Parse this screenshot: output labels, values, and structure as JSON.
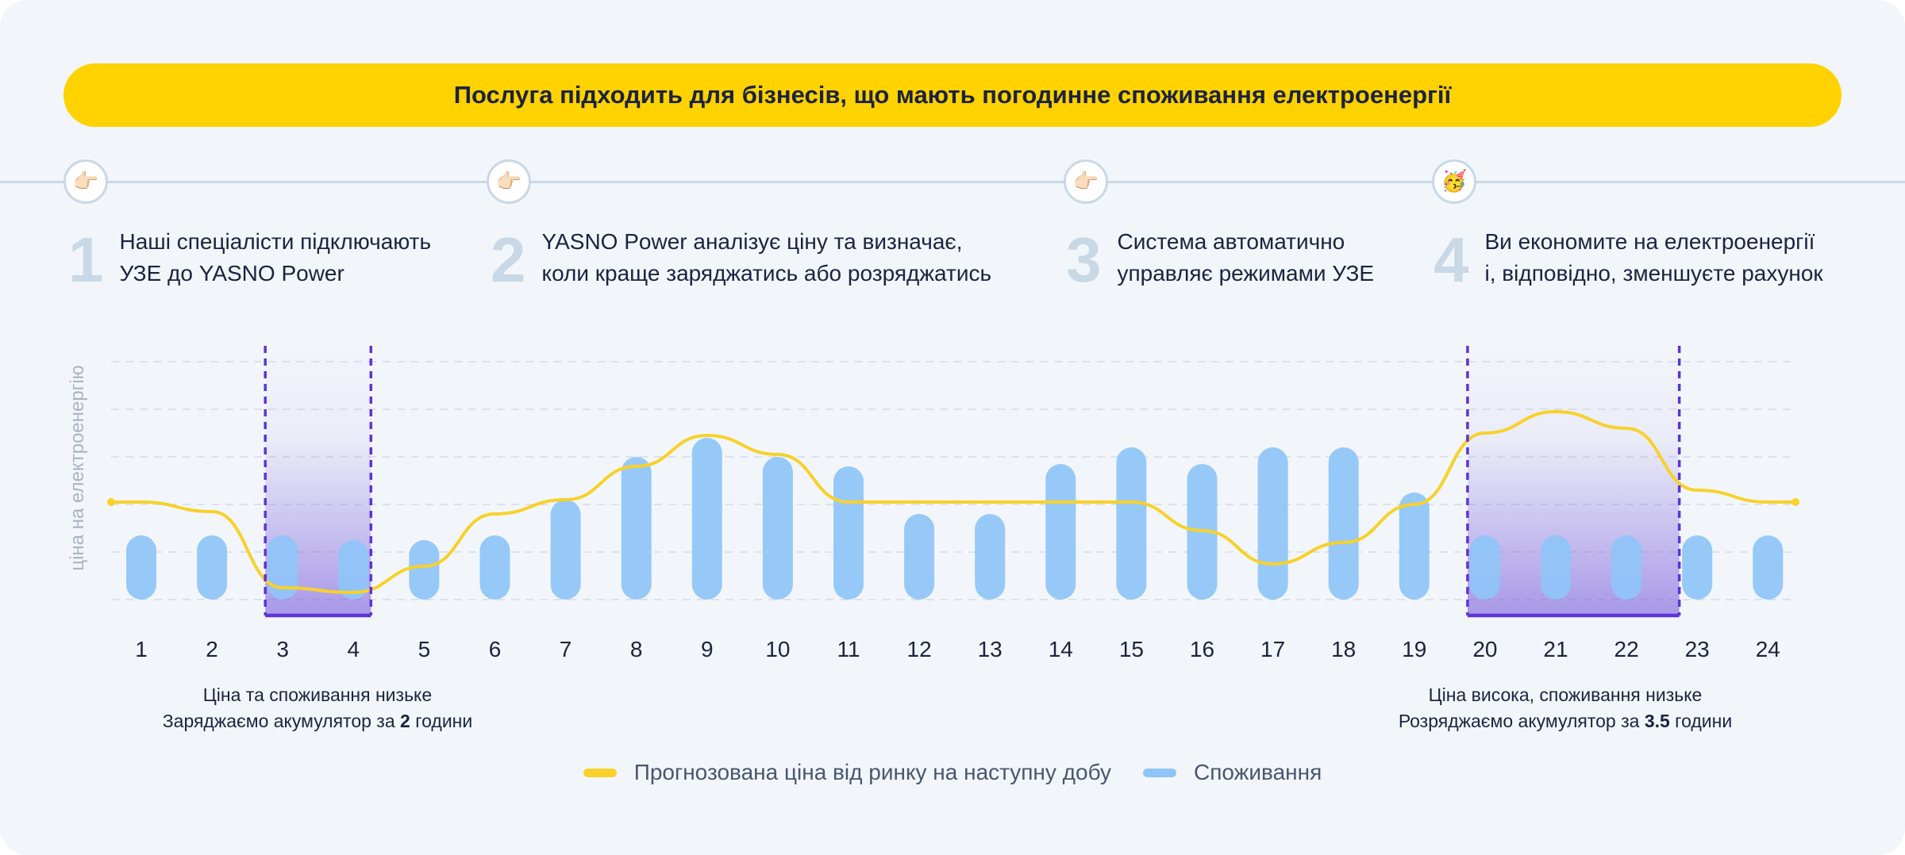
{
  "banner": "Послуга підходить для бізнесів, що мають погодинне споживання електроенергії",
  "steps": [
    {
      "num": "1",
      "icon": "👉🏻",
      "line1": "Наші спеціалісти підключають",
      "line2": "УЗЕ до YASNO Power"
    },
    {
      "num": "2",
      "icon": "👉🏻",
      "line1": "YASNO Power аналізує ціну та визначає,",
      "line2": "коли краще заряджатись або розряджатись"
    },
    {
      "num": "3",
      "icon": "👉🏻",
      "line1": "Система автоматично",
      "line2": "управляє режимами УЗЕ"
    },
    {
      "num": "4",
      "icon": "🥳",
      "line1": "Ви економите на електроенергії",
      "line2": "і, відповідно, зменшуєте рахунок"
    }
  ],
  "notes": {
    "charge": {
      "line1": "Ціна та споживання низьке",
      "line2_prefix": "Заряджаємо акумулятор за ",
      "line2_bold": "2",
      "line2_suffix": " години"
    },
    "discharge": {
      "line1": "Ціна висока, споживання низьке",
      "line2_prefix": "Розряджаємо акумулятор за ",
      "line2_bold": "3.5",
      "line2_suffix": " години"
    }
  },
  "chart_data": {
    "type": "bar",
    "categories": [
      "1",
      "2",
      "3",
      "4",
      "5",
      "6",
      "7",
      "8",
      "9",
      "10",
      "11",
      "12",
      "13",
      "14",
      "15",
      "16",
      "17",
      "18",
      "19",
      "20",
      "21",
      "22",
      "23",
      "24"
    ],
    "ylabel": "ціна на електроенергію",
    "ylim": [
      0,
      5
    ],
    "series": [
      {
        "name": "Споживання",
        "kind": "bar",
        "color": "#8fc4f7",
        "values": [
          1.35,
          1.35,
          1.35,
          1.25,
          1.25,
          1.35,
          2.1,
          3.0,
          3.4,
          3.0,
          2.8,
          1.8,
          1.8,
          2.85,
          3.2,
          2.85,
          3.2,
          3.2,
          2.25,
          1.35,
          1.35,
          1.35,
          1.35,
          1.35
        ]
      },
      {
        "name": "Прогнозована ціна від ринку на наступну добу",
        "kind": "line",
        "color": "#f8d12a",
        "values": [
          2.05,
          1.85,
          0.25,
          0.15,
          0.7,
          1.8,
          2.1,
          2.8,
          3.45,
          3.05,
          2.05,
          2.05,
          2.05,
          2.05,
          2.05,
          1.45,
          0.75,
          1.2,
          2.0,
          3.5,
          3.95,
          3.6,
          2.3,
          2.05
        ]
      }
    ],
    "highlights": [
      {
        "label": "charge",
        "from_hour": 3,
        "to_hour": 4,
        "color": "#5c35d6"
      },
      {
        "label": "discharge",
        "from_hour": 20,
        "to_hour": 22.5,
        "color": "#5c35d6"
      }
    ],
    "grid": true,
    "legend_position": "bottom-center"
  }
}
